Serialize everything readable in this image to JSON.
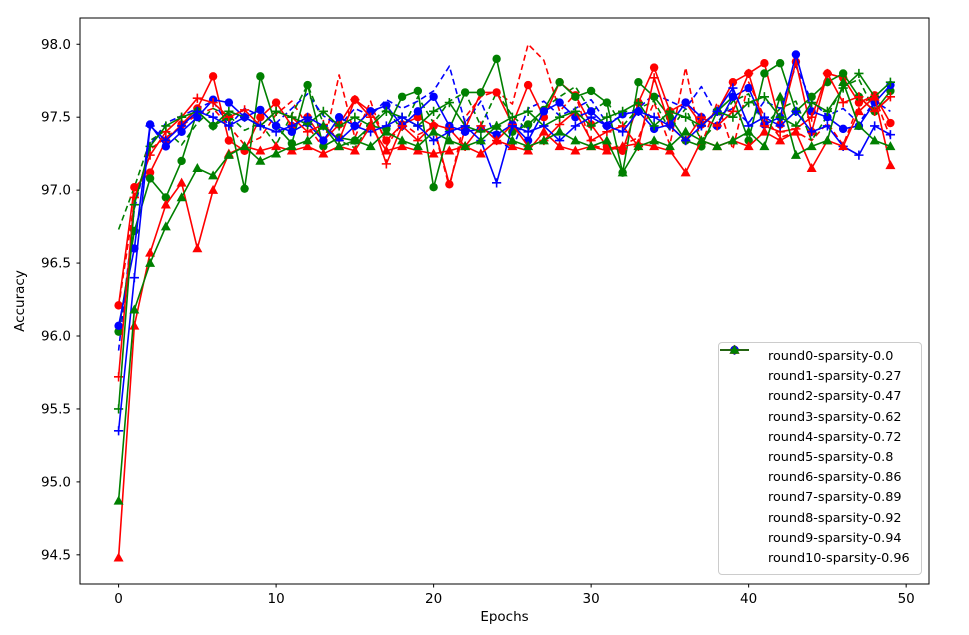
{
  "figure": {
    "background": "#ffffff"
  },
  "colors": {
    "red": "#ff0000",
    "green": "#008000",
    "blue": "#0000ff",
    "axis": "#000000",
    "legend_border": "#cccccc"
  },
  "chart_data": {
    "type": "line",
    "title": "",
    "xlabel": "Epochs",
    "ylabel": "Accuracy",
    "xlim": [
      -2.45,
      51.45
    ],
    "ylim": [
      94.3,
      98.18
    ],
    "xticks": [
      0,
      10,
      20,
      30,
      40,
      50
    ],
    "yticks": [
      94.5,
      95.0,
      95.5,
      96.0,
      96.5,
      97.0,
      97.5,
      98.0
    ],
    "grid": false,
    "legend_position": "lower right",
    "x": [
      0,
      1,
      2,
      3,
      4,
      5,
      6,
      7,
      8,
      9,
      10,
      11,
      12,
      13,
      14,
      15,
      16,
      17,
      18,
      19,
      20,
      21,
      22,
      23,
      24,
      25,
      26,
      27,
      28,
      29,
      30,
      31,
      32,
      33,
      34,
      35,
      36,
      37,
      38,
      39,
      40,
      41,
      42,
      43,
      44,
      45,
      46,
      47,
      48,
      49
    ],
    "series": [
      {
        "name": "round0-sparsity-0.0",
        "color": "#ff0000",
        "style": "dashed",
        "marker": "none",
        "values": [
          96.2,
          96.92,
          97.28,
          97.36,
          97.44,
          97.52,
          97.56,
          97.44,
          97.31,
          97.36,
          97.52,
          97.61,
          97.44,
          97.29,
          97.79,
          97.36,
          97.61,
          97.3,
          97.46,
          97.38,
          97.43,
          97.02,
          97.5,
          97.64,
          97.68,
          97.59,
          98.0,
          97.89,
          97.54,
          97.66,
          97.31,
          97.28,
          97.31,
          97.36,
          97.6,
          97.31,
          97.84,
          97.31,
          97.6,
          97.28,
          97.74,
          97.5,
          97.36,
          97.4,
          97.34,
          97.46,
          97.31,
          97.59,
          97.64,
          97.36
        ]
      },
      {
        "name": "round1-sparsity-0.27",
        "color": "#008000",
        "style": "dashed",
        "marker": "none",
        "values": [
          96.73,
          97.02,
          97.34,
          97.41,
          97.31,
          97.46,
          97.56,
          97.51,
          97.41,
          97.46,
          97.31,
          97.52,
          97.72,
          97.46,
          97.34,
          97.29,
          97.46,
          97.56,
          97.41,
          97.64,
          97.46,
          97.61,
          97.67,
          97.44,
          97.67,
          97.51,
          97.41,
          97.56,
          97.64,
          97.71,
          97.54,
          97.61,
          97.44,
          97.56,
          97.61,
          97.41,
          97.56,
          97.34,
          97.46,
          97.61,
          97.66,
          97.44,
          97.56,
          97.61,
          97.34,
          97.51,
          97.71,
          97.76,
          97.54,
          97.64
        ]
      },
      {
        "name": "round2-sparsity-0.47",
        "color": "#0000ff",
        "style": "dashed",
        "marker": "none",
        "values": [
          95.9,
          96.87,
          97.31,
          97.46,
          97.51,
          97.56,
          97.61,
          97.44,
          97.56,
          97.51,
          97.46,
          97.56,
          97.66,
          97.51,
          97.44,
          97.56,
          97.51,
          97.62,
          97.56,
          97.61,
          97.68,
          97.85,
          97.46,
          97.61,
          97.34,
          97.28,
          97.56,
          97.61,
          97.51,
          97.56,
          97.62,
          97.46,
          97.51,
          97.56,
          97.66,
          97.61,
          97.56,
          97.71,
          97.51,
          97.56,
          97.46,
          97.61,
          97.56,
          97.85,
          97.61,
          97.51,
          97.56,
          97.46,
          97.61,
          97.54
        ]
      },
      {
        "name": "round3-sparsity-0.62",
        "color": "#ff0000",
        "style": "solid",
        "marker": "circle",
        "values": [
          96.21,
          97.02,
          97.12,
          97.34,
          97.45,
          97.56,
          97.78,
          97.34,
          97.27,
          97.5,
          97.6,
          97.44,
          97.5,
          97.34,
          97.45,
          97.62,
          97.54,
          97.34,
          97.45,
          97.5,
          97.44,
          97.04,
          97.42,
          97.67,
          97.67,
          97.45,
          97.72,
          97.5,
          97.74,
          97.65,
          97.45,
          97.3,
          97.27,
          97.6,
          97.84,
          97.54,
          97.6,
          97.45,
          97.54,
          97.74,
          97.8,
          97.87,
          97.45,
          97.88,
          97.4,
          97.8,
          97.77,
          97.6,
          97.65,
          97.46
        ]
      },
      {
        "name": "round4-sparsity-0.72",
        "color": "#008000",
        "style": "solid",
        "marker": "circle",
        "values": [
          96.03,
          96.72,
          97.08,
          96.95,
          97.2,
          97.54,
          97.44,
          97.5,
          97.01,
          97.78,
          97.44,
          97.32,
          97.72,
          97.3,
          97.36,
          97.34,
          97.44,
          97.42,
          97.64,
          97.68,
          97.02,
          97.42,
          97.67,
          97.67,
          97.9,
          97.4,
          97.45,
          97.55,
          97.74,
          97.64,
          97.68,
          97.6,
          97.12,
          97.74,
          97.64,
          97.5,
          97.34,
          97.3,
          97.54,
          97.64,
          97.34,
          97.8,
          97.87,
          97.54,
          97.64,
          97.74,
          97.8,
          97.64,
          97.54,
          97.68
        ]
      },
      {
        "name": "round5-sparsity-0.8",
        "color": "#0000ff",
        "style": "solid",
        "marker": "circle",
        "values": [
          96.07,
          96.6,
          97.45,
          97.3,
          97.4,
          97.5,
          97.62,
          97.6,
          97.5,
          97.55,
          97.44,
          97.4,
          97.46,
          97.34,
          97.5,
          97.44,
          97.54,
          97.58,
          97.44,
          97.54,
          97.64,
          97.44,
          97.4,
          97.42,
          97.38,
          97.45,
          97.34,
          97.54,
          97.6,
          97.5,
          97.54,
          97.44,
          97.52,
          97.54,
          97.42,
          97.45,
          97.6,
          97.5,
          97.44,
          97.64,
          97.7,
          97.45,
          97.5,
          97.93,
          97.54,
          97.5,
          97.42,
          97.44,
          97.6,
          97.72
        ]
      },
      {
        "name": "round6-sparsity-0.86",
        "color": "#ff0000",
        "style": "solid",
        "marker": "plus",
        "values": [
          95.72,
          96.95,
          97.24,
          97.4,
          97.5,
          97.63,
          97.6,
          97.5,
          97.55,
          97.44,
          97.54,
          97.5,
          97.4,
          97.45,
          97.34,
          97.62,
          97.5,
          97.18,
          97.44,
          97.34,
          97.45,
          97.42,
          97.3,
          97.44,
          97.34,
          97.45,
          97.3,
          97.34,
          97.45,
          97.54,
          97.34,
          97.4,
          97.44,
          97.3,
          97.77,
          97.44,
          97.34,
          97.5,
          97.44,
          97.54,
          97.8,
          97.44,
          97.4,
          97.42,
          97.5,
          97.8,
          97.6,
          97.64,
          97.54,
          97.64
        ]
      },
      {
        "name": "round7-sparsity-0.89",
        "color": "#008000",
        "style": "solid",
        "marker": "plus",
        "values": [
          95.5,
          96.9,
          97.3,
          97.44,
          97.5,
          97.54,
          97.44,
          97.54,
          97.5,
          97.44,
          97.54,
          97.5,
          97.45,
          97.54,
          97.44,
          97.5,
          97.44,
          97.54,
          97.5,
          97.44,
          97.54,
          97.6,
          97.44,
          97.4,
          97.44,
          97.5,
          97.54,
          97.44,
          97.5,
          97.54,
          97.44,
          97.5,
          97.54,
          97.6,
          97.44,
          97.54,
          97.5,
          97.44,
          97.54,
          97.5,
          97.6,
          97.64,
          97.5,
          97.44,
          97.6,
          97.54,
          97.7,
          97.8,
          97.64,
          97.74
        ]
      },
      {
        "name": "round8-sparsity-0.92",
        "color": "#0000ff",
        "style": "solid",
        "marker": "plus",
        "values": [
          95.35,
          96.4,
          97.44,
          97.34,
          97.44,
          97.54,
          97.5,
          97.44,
          97.5,
          97.44,
          97.4,
          97.44,
          97.5,
          97.44,
          97.34,
          97.44,
          97.4,
          97.44,
          97.5,
          97.44,
          97.34,
          97.4,
          97.44,
          97.34,
          97.05,
          97.44,
          97.4,
          97.44,
          97.34,
          97.44,
          97.5,
          97.44,
          97.4,
          97.54,
          97.5,
          97.44,
          97.34,
          97.44,
          97.54,
          97.7,
          97.44,
          97.5,
          97.44,
          97.54,
          97.4,
          97.44,
          97.3,
          97.24,
          97.44,
          97.38
        ]
      },
      {
        "name": "round9-sparsity-0.94",
        "color": "#ff0000",
        "style": "solid",
        "marker": "triangle",
        "values": [
          94.48,
          96.07,
          96.57,
          96.9,
          97.05,
          96.6,
          97.0,
          97.25,
          97.3,
          97.27,
          97.3,
          97.27,
          97.3,
          97.25,
          97.3,
          97.27,
          97.44,
          97.27,
          97.3,
          97.27,
          97.25,
          97.27,
          97.3,
          97.25,
          97.34,
          97.3,
          97.27,
          97.4,
          97.3,
          97.27,
          97.3,
          97.27,
          97.3,
          97.32,
          97.3,
          97.27,
          97.12,
          97.34,
          97.3,
          97.34,
          97.3,
          97.4,
          97.34,
          97.4,
          97.15,
          97.34,
          97.3,
          97.54,
          97.64,
          97.17
        ]
      },
      {
        "name": "round10-sparsity-0.96",
        "color": "#008000",
        "style": "solid",
        "marker": "triangle",
        "values": [
          94.87,
          96.18,
          96.5,
          96.75,
          96.95,
          97.15,
          97.1,
          97.24,
          97.3,
          97.2,
          97.25,
          97.3,
          97.34,
          97.44,
          97.3,
          97.34,
          97.3,
          97.4,
          97.34,
          97.3,
          97.4,
          97.34,
          97.3,
          97.34,
          97.44,
          97.34,
          97.3,
          97.34,
          97.4,
          97.34,
          97.3,
          97.34,
          97.12,
          97.3,
          97.34,
          97.3,
          97.4,
          97.34,
          97.3,
          97.34,
          97.4,
          97.3,
          97.64,
          97.24,
          97.3,
          97.34,
          97.74,
          97.44,
          97.34,
          97.3
        ]
      }
    ]
  }
}
